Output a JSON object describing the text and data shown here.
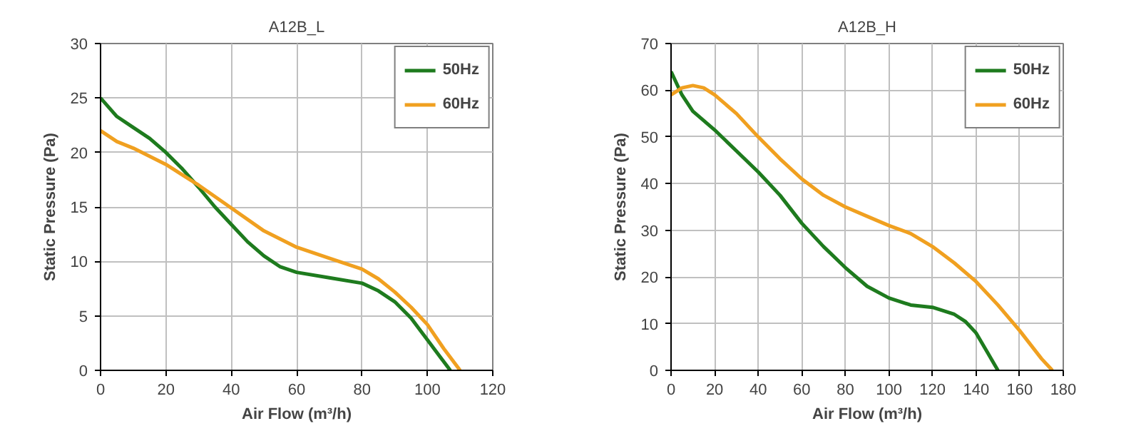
{
  "chart_data": [
    {
      "type": "line",
      "title": "A12B_L",
      "xlabel": "Air Flow (m³/h)",
      "ylabel": "Static Pressure (Pa)",
      "xlim": [
        0,
        120
      ],
      "ylim": [
        0,
        30
      ],
      "xticks": [
        0,
        20,
        40,
        60,
        80,
        100,
        120
      ],
      "yticks": [
        0,
        5,
        10,
        15,
        20,
        25,
        30
      ],
      "grid": true,
      "legend": "top right",
      "marker": "none",
      "line_style": "solid",
      "series": [
        {
          "name": "50Hz",
          "color": "#1e7b1e",
          "x": [
            0,
            5,
            10,
            15,
            20,
            25,
            30,
            35,
            40,
            45,
            50,
            55,
            60,
            70,
            80,
            85,
            90,
            95,
            100,
            104,
            107
          ],
          "values": [
            25,
            23.3,
            22.3,
            21.3,
            20,
            18.5,
            16.8,
            15,
            13.4,
            11.8,
            10.5,
            9.5,
            9,
            8.5,
            8,
            7.3,
            6.3,
            4.8,
            2.8,
            1.2,
            0
          ]
        },
        {
          "name": "60Hz",
          "color": "#f0a020",
          "x": [
            0,
            5,
            10,
            20,
            30,
            40,
            50,
            60,
            70,
            80,
            85,
            90,
            95,
            100,
            105,
            110
          ],
          "values": [
            22,
            21,
            20.4,
            18.9,
            17,
            14.9,
            12.8,
            11.3,
            10.3,
            9.3,
            8.4,
            7.2,
            5.8,
            4.2,
            2,
            0
          ]
        }
      ]
    },
    {
      "type": "line",
      "title": "A12B_H",
      "xlabel": "Air Flow (m³/h)",
      "ylabel": "Static Pressure (Pa)",
      "xlim": [
        0,
        180
      ],
      "ylim": [
        0,
        70
      ],
      "xticks": [
        0,
        20,
        40,
        60,
        80,
        100,
        120,
        140,
        160,
        180
      ],
      "yticks": [
        0,
        10,
        20,
        30,
        40,
        50,
        60,
        70
      ],
      "grid": true,
      "legend": "top right",
      "marker": "none",
      "line_style": "solid",
      "series": [
        {
          "name": "50Hz",
          "color": "#1e7b1e",
          "x": [
            0,
            5,
            10,
            20,
            30,
            40,
            50,
            60,
            70,
            80,
            90,
            100,
            110,
            120,
            130,
            135,
            140,
            145,
            150
          ],
          "values": [
            64,
            59,
            55.5,
            51.5,
            47,
            42.5,
            37.5,
            31.5,
            26.5,
            22,
            18,
            15.5,
            14,
            13.5,
            12,
            10.5,
            8,
            4,
            0
          ]
        },
        {
          "name": "60Hz",
          "color": "#f0a020",
          "x": [
            0,
            5,
            10,
            15,
            20,
            30,
            40,
            50,
            60,
            70,
            80,
            90,
            100,
            110,
            120,
            130,
            140,
            150,
            160,
            170,
            175
          ],
          "values": [
            59,
            60.5,
            61,
            60.5,
            59,
            55,
            50,
            45.3,
            41,
            37.5,
            35,
            33,
            31,
            29.3,
            26.5,
            23,
            19,
            14,
            8.5,
            2.5,
            0
          ]
        }
      ]
    }
  ]
}
